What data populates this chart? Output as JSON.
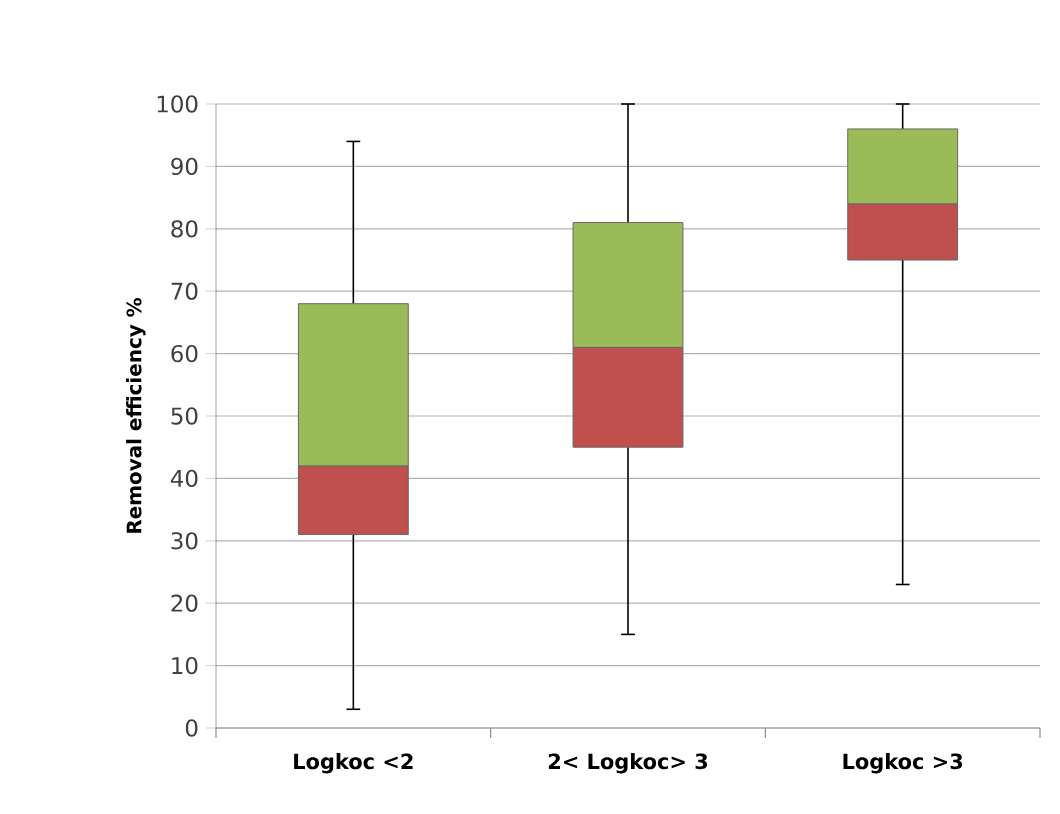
{
  "chart_data": {
    "type": "box",
    "ylabel": "Removal efficiency %",
    "categories": [
      "Logkoc <2",
      "2< Logkoc> 3",
      "Logkoc >3"
    ],
    "boxes": [
      {
        "low": 3,
        "q1": 31,
        "median": 42,
        "q3": 68,
        "high": 94
      },
      {
        "low": 15,
        "q1": 45,
        "median": 61,
        "q3": 81,
        "high": 100
      },
      {
        "low": 23,
        "q1": 75,
        "median": 84,
        "q3": 96,
        "high": 100
      }
    ],
    "colors": [
      [
        "#c0504d",
        "#9bbb59"
      ],
      [
        "#c0504d",
        "#9bbb59"
      ],
      [
        "#c0504d",
        "#9bbb59"
      ]
    ],
    "ylim": [
      0,
      100
    ],
    "yticks": [
      0,
      10,
      20,
      30,
      40,
      50,
      60,
      70,
      80,
      90,
      100
    ],
    "grid": "y"
  }
}
